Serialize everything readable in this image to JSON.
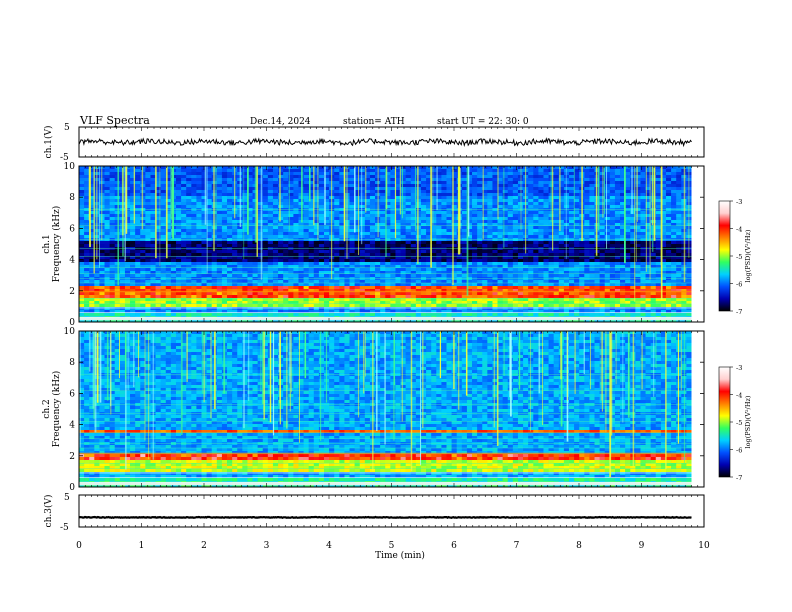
{
  "header": {
    "title": "VLF  Spectra",
    "date": "Dec.14, 2024",
    "station": "station= ATH",
    "start": "start  UT  =    22: 30: 0"
  },
  "chart_data": [
    {
      "type": "line",
      "panel": "ch.1",
      "ylabel": "ch.1(V)",
      "ylim": [
        -5,
        5
      ],
      "yticks": [
        "5",
        "-5"
      ],
      "x_range_min": [
        0,
        9.8
      ],
      "series": [
        {
          "values_level_V": 0.0,
          "noise_amplitude_V": 0.9
        }
      ]
    },
    {
      "type": "heatmap",
      "panel": "ch.1",
      "ylabel_top": "ch.1",
      "ylabel": "Frequency  (kHz)",
      "ylim": [
        0,
        10
      ],
      "yticks": [
        "0",
        "2",
        "4",
        "6",
        "8",
        "10"
      ],
      "xlim": [
        0,
        10
      ],
      "data_extent_min": 9.8,
      "colorbar": {
        "label": "log(PSD)(V²/Hz)",
        "ticks": [
          "-3",
          "-4",
          "-5",
          "-6",
          "-7"
        ],
        "range": [
          -7,
          -3
        ],
        "colors": [
          "#000000",
          "#0000b0",
          "#0050ff",
          "#00d0ff",
          "#30ff60",
          "#ffff00",
          "#ff8000",
          "#ff0000",
          "#ffd0d0",
          "#ffffff"
        ]
      },
      "features": {
        "background_log_psd": -5.9,
        "dark_band_kHz": [
          3.8,
          5.2
        ],
        "strong_band_kHz": [
          1.6,
          2.4
        ],
        "low_band_kHz": [
          0,
          0.6
        ]
      }
    },
    {
      "type": "heatmap",
      "panel": "ch.2",
      "ylabel_top": "ch.2",
      "ylabel": "Frequency  (kHz)",
      "ylim": [
        0,
        10
      ],
      "yticks": [
        "0",
        "2",
        "4",
        "6",
        "8",
        "10"
      ],
      "xlim": [
        0,
        10
      ],
      "data_extent_min": 9.8,
      "colorbar": {
        "label": "log(PSD)(V²/Hz)",
        "ticks": [
          "-3",
          "-4",
          "-5",
          "-6",
          "-7"
        ],
        "range": [
          -7,
          -3
        ]
      },
      "features": {
        "background_log_psd": -5.8,
        "band_kHz": [
          3.4,
          3.7
        ],
        "strong_band_kHz": [
          1.8,
          2.2
        ],
        "low_band_kHz": [
          0,
          0.6
        ]
      }
    },
    {
      "type": "line",
      "panel": "ch.3",
      "ylabel": "ch.3(V)",
      "ylim": [
        -5,
        5
      ],
      "yticks": [
        "5",
        "-5"
      ],
      "x_range_min": [
        0,
        9.8
      ],
      "series": [
        {
          "values_level_V": -2.0,
          "noise_amplitude_V": 0.1
        }
      ]
    }
  ],
  "xaxis": {
    "label": "Time  (min)",
    "ticks": [
      "0",
      "1",
      "2",
      "3",
      "4",
      "5",
      "6",
      "7",
      "8",
      "9",
      "10"
    ]
  }
}
